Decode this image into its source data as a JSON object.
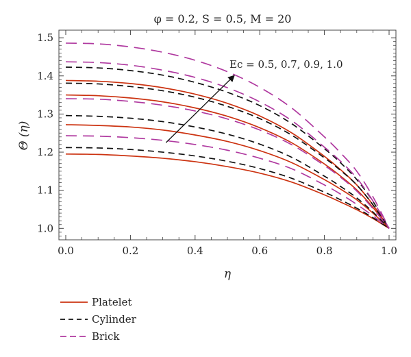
{
  "chart_data": {
    "type": "line",
    "title": "φ = 0.2, S = 0.5, M = 20",
    "xlabel": "η",
    "ylabel": "Θ (η)",
    "xlim": [
      0.0,
      1.0
    ],
    "ylim": [
      0.97,
      1.52
    ],
    "x_ticks": [
      "0.0",
      "0.2",
      "0.4",
      "0.6",
      "0.8",
      "1.0"
    ],
    "y_ticks": [
      "1.0",
      "1.1",
      "1.2",
      "1.3",
      "1.4",
      "1.5"
    ],
    "x": [
      0.0,
      0.1,
      0.2,
      0.3,
      0.4,
      0.5,
      0.6,
      0.7,
      0.8,
      0.85,
      0.9,
      0.95,
      1.0
    ],
    "series": [
      {
        "name": "Platelet",
        "style": "solid",
        "color": "#cc3311",
        "values": [
          1.195,
          1.194,
          1.19,
          1.184,
          1.175,
          1.162,
          1.145,
          1.121,
          1.088,
          1.069,
          1.049,
          1.026,
          1.0
        ]
      },
      {
        "name": "Platelet",
        "style": "solid",
        "color": "#cc3311",
        "values": [
          1.272,
          1.27,
          1.266,
          1.258,
          1.245,
          1.228,
          1.204,
          1.172,
          1.128,
          1.103,
          1.075,
          1.04,
          1.0
        ]
      },
      {
        "name": "Platelet",
        "style": "solid",
        "color": "#cc3311",
        "values": [
          1.35,
          1.348,
          1.342,
          1.332,
          1.316,
          1.294,
          1.264,
          1.224,
          1.169,
          1.137,
          1.101,
          1.055,
          1.0
        ]
      },
      {
        "name": "Platelet",
        "style": "solid",
        "color": "#cc3311",
        "values": [
          1.388,
          1.386,
          1.38,
          1.369,
          1.352,
          1.328,
          1.295,
          1.25,
          1.189,
          1.154,
          1.114,
          1.062,
          1.0
        ]
      },
      {
        "name": "Cylinder",
        "style": "dashed",
        "color": "#111111",
        "values": [
          1.212,
          1.211,
          1.207,
          1.2,
          1.19,
          1.176,
          1.157,
          1.131,
          1.095,
          1.075,
          1.053,
          1.028,
          1.0
        ]
      },
      {
        "name": "Cylinder",
        "style": "dashed",
        "color": "#111111",
        "values": [
          1.296,
          1.294,
          1.289,
          1.28,
          1.266,
          1.247,
          1.221,
          1.186,
          1.137,
          1.11,
          1.08,
          1.043,
          1.0
        ]
      },
      {
        "name": "Cylinder",
        "style": "dashed",
        "color": "#111111",
        "values": [
          1.381,
          1.379,
          1.372,
          1.361,
          1.344,
          1.32,
          1.288,
          1.244,
          1.185,
          1.152,
          1.114,
          1.062,
          1.0
        ]
      },
      {
        "name": "Cylinder",
        "style": "dashed",
        "color": "#111111",
        "values": [
          1.423,
          1.421,
          1.414,
          1.402,
          1.383,
          1.357,
          1.322,
          1.274,
          1.209,
          1.172,
          1.128,
          1.071,
          1.0
        ]
      },
      {
        "name": "Brick",
        "style": "dashed",
        "color": "#b03aa0",
        "values": [
          1.243,
          1.242,
          1.238,
          1.231,
          1.22,
          1.205,
          1.184,
          1.156,
          1.114,
          1.09,
          1.063,
          1.033,
          1.0
        ]
      },
      {
        "name": "Brick",
        "style": "dashed",
        "color": "#b03aa0",
        "values": [
          1.34,
          1.339,
          1.333,
          1.323,
          1.308,
          1.287,
          1.258,
          1.219,
          1.165,
          1.134,
          1.098,
          1.052,
          1.0
        ]
      },
      {
        "name": "Brick",
        "style": "dashed",
        "color": "#b03aa0",
        "values": [
          1.437,
          1.435,
          1.428,
          1.415,
          1.396,
          1.369,
          1.332,
          1.282,
          1.213,
          1.176,
          1.132,
          1.072,
          1.0
        ]
      },
      {
        "name": "Brick",
        "style": "dashed",
        "color": "#b03aa0",
        "values": [
          1.486,
          1.484,
          1.476,
          1.462,
          1.441,
          1.411,
          1.37,
          1.315,
          1.24,
          1.198,
          1.15,
          1.083,
          1.0
        ]
      }
    ],
    "annotation": {
      "text": "Ec = 0.5, 0.7, 0.9, 1.0",
      "arrow_from": [
        0.31,
        1.225
      ],
      "arrow_to": [
        0.52,
        1.4
      ]
    },
    "legend": {
      "placement": "below",
      "entries": [
        {
          "label": "Platelet",
          "style": "solid",
          "color": "#cc3311"
        },
        {
          "label": "Cylinder",
          "style": "dashed",
          "color": "#111111"
        },
        {
          "label": "Brick",
          "style": "dashed",
          "color": "#b03aa0"
        }
      ]
    },
    "grid": false
  }
}
